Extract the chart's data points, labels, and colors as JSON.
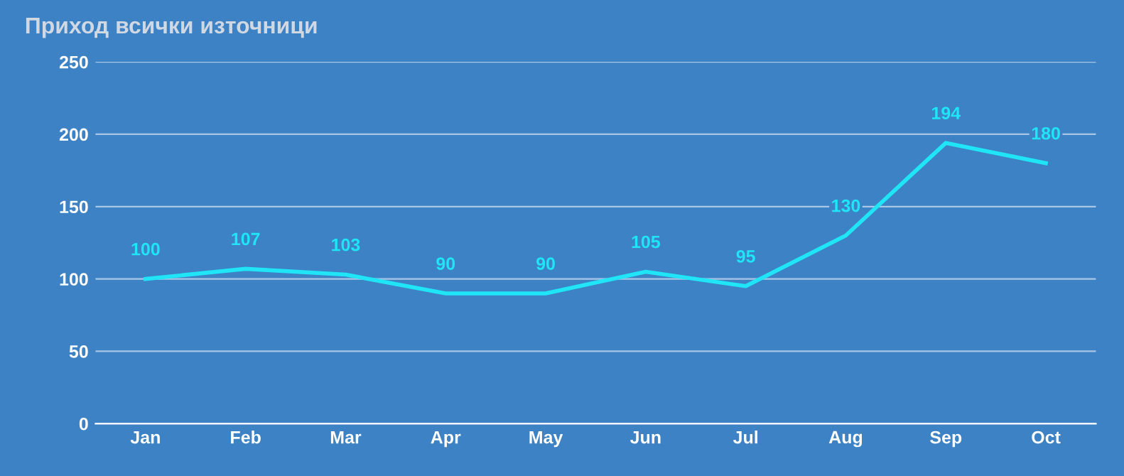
{
  "chart_data": {
    "type": "line",
    "title": "Приход всички източници",
    "categories": [
      "Jan",
      "Feb",
      "Mar",
      "Apr",
      "May",
      "Jun",
      "Jul",
      "Aug",
      "Sep",
      "Oct"
    ],
    "series": [
      {
        "color": "#1fe5f7",
        "values": [
          100,
          107,
          103,
          90,
          90,
          105,
          95,
          130,
          194,
          180
        ]
      }
    ],
    "ylim": [
      0,
      250
    ],
    "yticks": [
      0,
      50,
      100,
      150,
      200,
      250
    ],
    "grid": "y",
    "data_labels": true,
    "marker": "none",
    "line_style": "solid"
  }
}
